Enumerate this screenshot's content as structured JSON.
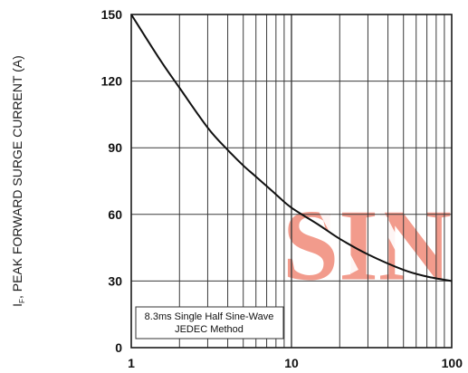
{
  "chart_data": {
    "type": "line",
    "title": "",
    "xlabel": "",
    "ylabel_prefix": "I",
    "ylabel_sub": "F",
    "ylabel_rest": ", PEAK FORWARD SURGE CURRENT (A)",
    "x_scale": "log",
    "xlim": [
      1,
      100
    ],
    "ylim": [
      0,
      150
    ],
    "x_ticks": [
      1,
      10,
      100
    ],
    "x_tick_labels": [
      "1",
      "10",
      "100"
    ],
    "y_ticks": [
      0,
      30,
      60,
      90,
      120,
      150
    ],
    "y_tick_labels": [
      "0",
      "30",
      "60",
      "90",
      "120",
      "150"
    ],
    "grid": true,
    "legend": "none",
    "annotation_lines": [
      "8.3ms Single Half Sine-Wave",
      "JEDEC Method"
    ],
    "watermark_text": "SIN",
    "watermark_color": "#f08a78",
    "line_color": "#111111",
    "series": [
      {
        "x": [
          1,
          1.5,
          2,
          3,
          4,
          5,
          6,
          8,
          10,
          15,
          20,
          30,
          50,
          70,
          100
        ],
        "y": [
          150,
          130,
          117,
          99,
          89,
          82,
          77,
          69,
          63,
          55,
          49,
          42,
          35,
          32,
          30
        ]
      }
    ]
  }
}
